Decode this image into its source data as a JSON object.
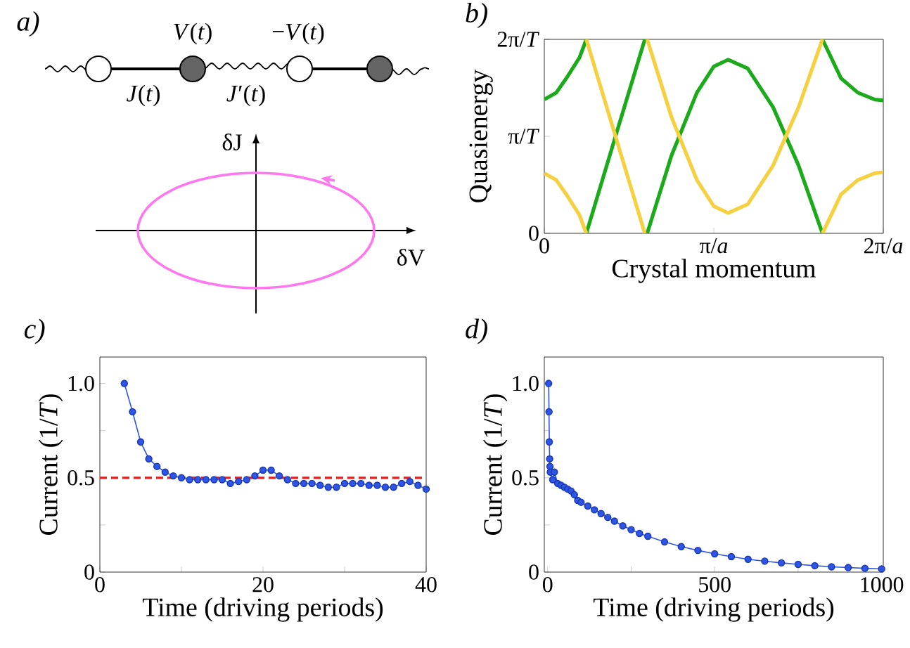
{
  "chart_data": [
    {
      "type": "other",
      "title": "a)",
      "annotations": [
        "*V*(*t*)",
        "−*V*(*t*)",
        "*J*(*t*)",
        "*J*′(*t*)",
        "δJ",
        "δV"
      ]
    },
    {
      "type": "line",
      "title": "b)",
      "xlabel": "Crystal momentum",
      "ylabel": "Quasienergy",
      "xlim": [
        0,
        2
      ],
      "ylim": [
        0,
        2
      ],
      "xticks": [
        0,
        {
          "value": 1,
          "label": "π/*a*"
        },
        {
          "value": 2,
          "label": "2π/*a*"
        }
      ],
      "yticks": [
        0,
        {
          "value": 1,
          "label": "π/*T*"
        },
        {
          "value": 2,
          "label": "2π/*T*"
        }
      ],
      "series": [
        {
          "color": "#1aaa1a",
          "x": [
            0,
            0.07,
            0.138,
            0.207,
            0.248,
            null,
            0.248,
            0.42,
            0.593,
            null,
            0.607,
            0.75,
            0.9,
            1.0,
            1.084,
            1.2,
            1.35,
            1.5,
            1.641,
            null,
            1.641,
            1.75,
            1.85,
            1.95,
            2
          ],
          "values": [
            1.38,
            1.45,
            1.62,
            1.81,
            2,
            null,
            0,
            1.0,
            2,
            null,
            0,
            0.8,
            1.45,
            1.72,
            1.79,
            1.7,
            1.3,
            0.7,
            0,
            null,
            2,
            1.6,
            1.45,
            1.38,
            1.37
          ]
        },
        {
          "color": "#f5d040",
          "x": [
            0,
            0.07,
            0.138,
            0.207,
            0.248,
            null,
            0.248,
            0.42,
            0.593,
            null,
            0.607,
            0.75,
            0.9,
            1.0,
            1.084,
            1.2,
            1.35,
            1.5,
            1.641,
            null,
            1.641,
            1.75,
            1.85,
            1.95,
            2
          ],
          "values": [
            0.62,
            0.55,
            0.38,
            0.19,
            0,
            null,
            2,
            1.0,
            0,
            null,
            2,
            1.2,
            0.55,
            0.28,
            0.21,
            0.3,
            0.7,
            1.3,
            2,
            null,
            0,
            0.4,
            0.55,
            0.62,
            0.63
          ]
        }
      ]
    },
    {
      "type": "line",
      "title": "c)",
      "xlabel": "Time (driving periods)",
      "ylabel": "Current (1/*T*)",
      "xlim": [
        0,
        40
      ],
      "ylim": [
        0,
        1.14
      ],
      "xticks": [
        0,
        {
          "value": 10,
          "label": null
        },
        20,
        {
          "value": 30,
          "label": null
        },
        40
      ],
      "yticks": [
        0,
        {
          "value": 0.25,
          "label": null
        },
        0.5,
        {
          "value": 0.75,
          "label": null
        },
        {
          "value": 1,
          "label": "1.0"
        }
      ],
      "marker": "circle",
      "ref_lines": [
        {
          "axis": "y",
          "value": 0.5,
          "color": "#e02020",
          "line_style": "dashed"
        }
      ],
      "series": [
        {
          "color": "#2f55e8",
          "x": [
            3,
            4,
            5,
            6,
            7,
            8,
            9,
            10,
            11,
            12,
            13,
            14,
            15,
            16,
            17,
            18,
            19,
            20,
            21,
            22,
            23,
            24,
            25,
            26,
            27,
            28,
            29,
            30,
            31,
            32,
            33,
            34,
            35,
            36,
            37,
            38,
            39,
            40
          ],
          "values": [
            1.0,
            0.85,
            0.69,
            0.6,
            0.56,
            0.53,
            0.51,
            0.5,
            0.49,
            0.49,
            0.49,
            0.49,
            0.49,
            0.47,
            0.48,
            0.49,
            0.51,
            0.54,
            0.54,
            0.51,
            0.49,
            0.47,
            0.47,
            0.47,
            0.46,
            0.45,
            0.45,
            0.47,
            0.47,
            0.47,
            0.46,
            0.46,
            0.45,
            0.45,
            0.47,
            0.48,
            0.46,
            0.44
          ]
        }
      ]
    },
    {
      "type": "line",
      "title": "d)",
      "xlabel": "Time (driving periods)",
      "ylabel": "Current (1/*T*)",
      "xlim": [
        -10,
        1005
      ],
      "ylim": [
        0,
        1.14
      ],
      "xticks": [
        0,
        {
          "value": 250,
          "label": null
        },
        500,
        {
          "value": 750,
          "label": null
        },
        1000
      ],
      "yticks": [
        0,
        {
          "value": 0.25,
          "label": null
        },
        0.5,
        {
          "value": 0.75,
          "label": null
        },
        {
          "value": 1,
          "label": "1.0"
        }
      ],
      "marker": "circle",
      "series": [
        {
          "color": "#2f55e8",
          "x": [
            3,
            4,
            5,
            6,
            7,
            8,
            15,
            20,
            30,
            40,
            50,
            60,
            70,
            80,
            90,
            100,
            120,
            140,
            160,
            180,
            200,
            225,
            250,
            275,
            300,
            350,
            400,
            450,
            500,
            550,
            600,
            650,
            700,
            750,
            800,
            850,
            900,
            950,
            1000
          ],
          "values": [
            1.0,
            0.85,
            0.69,
            0.6,
            0.56,
            0.53,
            0.49,
            0.53,
            0.47,
            0.46,
            0.45,
            0.44,
            0.43,
            0.41,
            0.38,
            0.37,
            0.35,
            0.33,
            0.31,
            0.29,
            0.27,
            0.245,
            0.225,
            0.205,
            0.19,
            0.16,
            0.135,
            0.115,
            0.097,
            0.082,
            0.068,
            0.058,
            0.049,
            0.041,
            0.034,
            0.028,
            0.024,
            0.02,
            0.017
          ]
        }
      ]
    }
  ]
}
